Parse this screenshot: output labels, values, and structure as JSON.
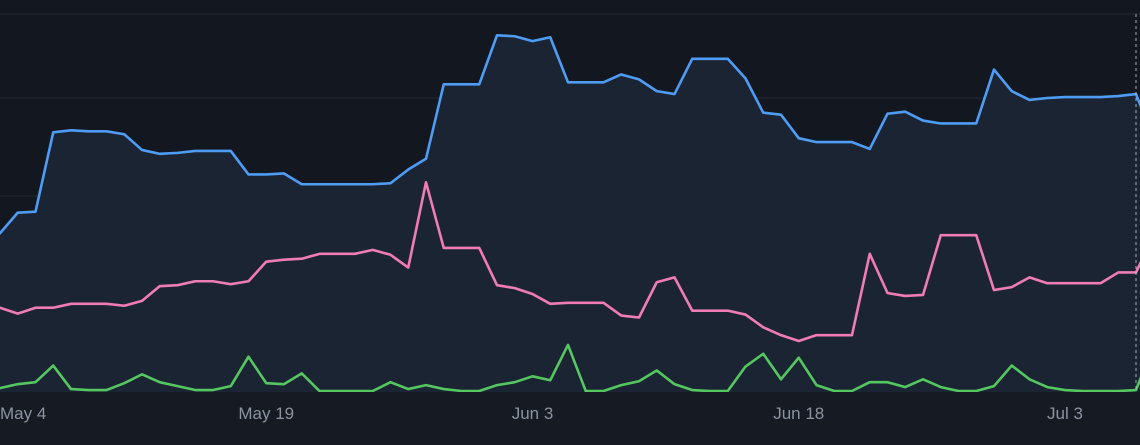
{
  "chart_data": {
    "type": "line",
    "title": "",
    "xlabel": "",
    "ylabel": "",
    "x_range": [
      "2024-05-04",
      "2024-07-08"
    ],
    "ylim": [
      0,
      400
    ],
    "grid": true,
    "legend": "none",
    "x_ticks": [
      {
        "date": "2024-05-04",
        "label": "May 4"
      },
      {
        "date": "2024-05-19",
        "label": "May 19"
      },
      {
        "date": "2024-06-03",
        "label": "Jun 3"
      },
      {
        "date": "2024-06-18",
        "label": "Jun 18"
      },
      {
        "date": "2024-07-03",
        "label": "Jul 3"
      }
    ],
    "hover_date": "2024-07-07",
    "colors": {
      "background": "#161a22",
      "plot_background": "#131820",
      "area_fill": "#1b2433",
      "grid": "#232833",
      "hover_line": "#c8ccd4"
    },
    "series": [
      {
        "color": "#4f9cf5",
        "fill_area": true,
        "points": [
          [
            "2024-05-04",
            162
          ],
          [
            "2024-05-05",
            183
          ],
          [
            "2024-05-06",
            184
          ],
          [
            "2024-05-07",
            265
          ],
          [
            "2024-05-08",
            267
          ],
          [
            "2024-05-09",
            266
          ],
          [
            "2024-05-10",
            266
          ],
          [
            "2024-05-11",
            263
          ],
          [
            "2024-05-12",
            247
          ],
          [
            "2024-05-13",
            243
          ],
          [
            "2024-05-14",
            244
          ],
          [
            "2024-05-15",
            246
          ],
          [
            "2024-05-16",
            246
          ],
          [
            "2024-05-17",
            246
          ],
          [
            "2024-05-18",
            222
          ],
          [
            "2024-05-19",
            222
          ],
          [
            "2024-05-20",
            223
          ],
          [
            "2024-05-21",
            212
          ],
          [
            "2024-05-22",
            212
          ],
          [
            "2024-05-23",
            212
          ],
          [
            "2024-05-24",
            212
          ],
          [
            "2024-05-25",
            212
          ],
          [
            "2024-05-26",
            213
          ],
          [
            "2024-05-27",
            227
          ],
          [
            "2024-05-28",
            238
          ],
          [
            "2024-05-29",
            314
          ],
          [
            "2024-05-30",
            314
          ],
          [
            "2024-05-31",
            314
          ],
          [
            "2024-06-01",
            364
          ],
          [
            "2024-06-02",
            363
          ],
          [
            "2024-06-03",
            358
          ],
          [
            "2024-06-04",
            362
          ],
          [
            "2024-06-05",
            316
          ],
          [
            "2024-06-06",
            316
          ],
          [
            "2024-06-07",
            316
          ],
          [
            "2024-06-08",
            324
          ],
          [
            "2024-06-09",
            319
          ],
          [
            "2024-06-10",
            307
          ],
          [
            "2024-06-11",
            304
          ],
          [
            "2024-06-12",
            340
          ],
          [
            "2024-06-13",
            340
          ],
          [
            "2024-06-14",
            340
          ],
          [
            "2024-06-15",
            320
          ],
          [
            "2024-06-16",
            285
          ],
          [
            "2024-06-17",
            283
          ],
          [
            "2024-06-18",
            259
          ],
          [
            "2024-06-19",
            255
          ],
          [
            "2024-06-20",
            255
          ],
          [
            "2024-06-21",
            255
          ],
          [
            "2024-06-22",
            248
          ],
          [
            "2024-06-23",
            284
          ],
          [
            "2024-06-24",
            286
          ],
          [
            "2024-06-25",
            277
          ],
          [
            "2024-06-26",
            274
          ],
          [
            "2024-06-27",
            274
          ],
          [
            "2024-06-28",
            274
          ],
          [
            "2024-06-29",
            329
          ],
          [
            "2024-06-30",
            307
          ],
          [
            "2024-07-01",
            298
          ],
          [
            "2024-07-02",
            300
          ],
          [
            "2024-07-03",
            301
          ],
          [
            "2024-07-04",
            301
          ],
          [
            "2024-07-05",
            301
          ],
          [
            "2024-07-06",
            302
          ],
          [
            "2024-07-07",
            304
          ],
          [
            "2024-07-08",
            258
          ]
        ]
      },
      {
        "color": "#f07cb6",
        "fill_area": false,
        "points": [
          [
            "2024-05-04",
            86
          ],
          [
            "2024-05-05",
            80
          ],
          [
            "2024-05-06",
            86
          ],
          [
            "2024-05-07",
            86
          ],
          [
            "2024-05-08",
            90
          ],
          [
            "2024-05-09",
            90
          ],
          [
            "2024-05-10",
            90
          ],
          [
            "2024-05-11",
            88
          ],
          [
            "2024-05-12",
            93
          ],
          [
            "2024-05-13",
            108
          ],
          [
            "2024-05-14",
            109
          ],
          [
            "2024-05-15",
            113
          ],
          [
            "2024-05-16",
            113
          ],
          [
            "2024-05-17",
            110
          ],
          [
            "2024-05-18",
            113
          ],
          [
            "2024-05-19",
            133
          ],
          [
            "2024-05-20",
            135
          ],
          [
            "2024-05-21",
            136
          ],
          [
            "2024-05-22",
            141
          ],
          [
            "2024-05-23",
            141
          ],
          [
            "2024-05-24",
            141
          ],
          [
            "2024-05-25",
            145
          ],
          [
            "2024-05-26",
            140
          ],
          [
            "2024-05-27",
            127
          ],
          [
            "2024-05-28",
            214
          ],
          [
            "2024-05-29",
            147
          ],
          [
            "2024-05-30",
            147
          ],
          [
            "2024-05-31",
            147
          ],
          [
            "2024-06-01",
            109
          ],
          [
            "2024-06-02",
            106
          ],
          [
            "2024-06-03",
            100
          ],
          [
            "2024-06-04",
            90
          ],
          [
            "2024-06-05",
            91
          ],
          [
            "2024-06-06",
            91
          ],
          [
            "2024-06-07",
            91
          ],
          [
            "2024-06-08",
            78
          ],
          [
            "2024-06-09",
            76
          ],
          [
            "2024-06-10",
            112
          ],
          [
            "2024-06-11",
            117
          ],
          [
            "2024-06-12",
            83
          ],
          [
            "2024-06-13",
            83
          ],
          [
            "2024-06-14",
            83
          ],
          [
            "2024-06-15",
            79
          ],
          [
            "2024-06-16",
            66
          ],
          [
            "2024-06-17",
            58
          ],
          [
            "2024-06-18",
            52
          ],
          [
            "2024-06-19",
            58
          ],
          [
            "2024-06-20",
            58
          ],
          [
            "2024-06-21",
            58
          ],
          [
            "2024-06-22",
            141
          ],
          [
            "2024-06-23",
            101
          ],
          [
            "2024-06-24",
            98
          ],
          [
            "2024-06-25",
            99
          ],
          [
            "2024-06-26",
            160
          ],
          [
            "2024-06-27",
            160
          ],
          [
            "2024-06-28",
            160
          ],
          [
            "2024-06-29",
            104
          ],
          [
            "2024-06-30",
            107
          ],
          [
            "2024-07-01",
            117
          ],
          [
            "2024-07-02",
            111
          ],
          [
            "2024-07-03",
            111
          ],
          [
            "2024-07-04",
            111
          ],
          [
            "2024-07-05",
            111
          ],
          [
            "2024-07-06",
            122
          ],
          [
            "2024-07-07",
            122
          ],
          [
            "2024-07-08",
            160
          ]
        ]
      },
      {
        "color": "#55c760",
        "fill_area": false,
        "points": [
          [
            "2024-05-04",
            4
          ],
          [
            "2024-05-05",
            8
          ],
          [
            "2024-05-06",
            10
          ],
          [
            "2024-05-07",
            27
          ],
          [
            "2024-05-08",
            3
          ],
          [
            "2024-05-09",
            2
          ],
          [
            "2024-05-10",
            2
          ],
          [
            "2024-05-11",
            9
          ],
          [
            "2024-05-12",
            18
          ],
          [
            "2024-05-13",
            10
          ],
          [
            "2024-05-14",
            6
          ],
          [
            "2024-05-15",
            2
          ],
          [
            "2024-05-16",
            2
          ],
          [
            "2024-05-17",
            6
          ],
          [
            "2024-05-18",
            36
          ],
          [
            "2024-05-19",
            9
          ],
          [
            "2024-05-20",
            8
          ],
          [
            "2024-05-21",
            19
          ],
          [
            "2024-05-22",
            1
          ],
          [
            "2024-05-23",
            1
          ],
          [
            "2024-05-24",
            1
          ],
          [
            "2024-05-25",
            1
          ],
          [
            "2024-05-26",
            10
          ],
          [
            "2024-05-27",
            3
          ],
          [
            "2024-05-28",
            7
          ],
          [
            "2024-05-29",
            3
          ],
          [
            "2024-05-30",
            1
          ],
          [
            "2024-05-31",
            1
          ],
          [
            "2024-06-01",
            7
          ],
          [
            "2024-06-02",
            10
          ],
          [
            "2024-06-03",
            16
          ],
          [
            "2024-06-04",
            12
          ],
          [
            "2024-06-05",
            48
          ],
          [
            "2024-06-06",
            1
          ],
          [
            "2024-06-07",
            1
          ],
          [
            "2024-06-08",
            7
          ],
          [
            "2024-06-09",
            11
          ],
          [
            "2024-06-10",
            22
          ],
          [
            "2024-06-11",
            8
          ],
          [
            "2024-06-12",
            2
          ],
          [
            "2024-06-13",
            1
          ],
          [
            "2024-06-14",
            1
          ],
          [
            "2024-06-15",
            26
          ],
          [
            "2024-06-16",
            39
          ],
          [
            "2024-06-17",
            13
          ],
          [
            "2024-06-18",
            35
          ],
          [
            "2024-06-19",
            7
          ],
          [
            "2024-06-20",
            1
          ],
          [
            "2024-06-21",
            1
          ],
          [
            "2024-06-22",
            10
          ],
          [
            "2024-06-23",
            10
          ],
          [
            "2024-06-24",
            5
          ],
          [
            "2024-06-25",
            13
          ],
          [
            "2024-06-26",
            5
          ],
          [
            "2024-06-27",
            1
          ],
          [
            "2024-06-28",
            1
          ],
          [
            "2024-06-29",
            6
          ],
          [
            "2024-06-30",
            27
          ],
          [
            "2024-07-01",
            13
          ],
          [
            "2024-07-02",
            5
          ],
          [
            "2024-07-03",
            2
          ],
          [
            "2024-07-04",
            1
          ],
          [
            "2024-07-05",
            1
          ],
          [
            "2024-07-06",
            1
          ],
          [
            "2024-07-07",
            2
          ],
          [
            "2024-07-08",
            48
          ]
        ]
      }
    ]
  }
}
